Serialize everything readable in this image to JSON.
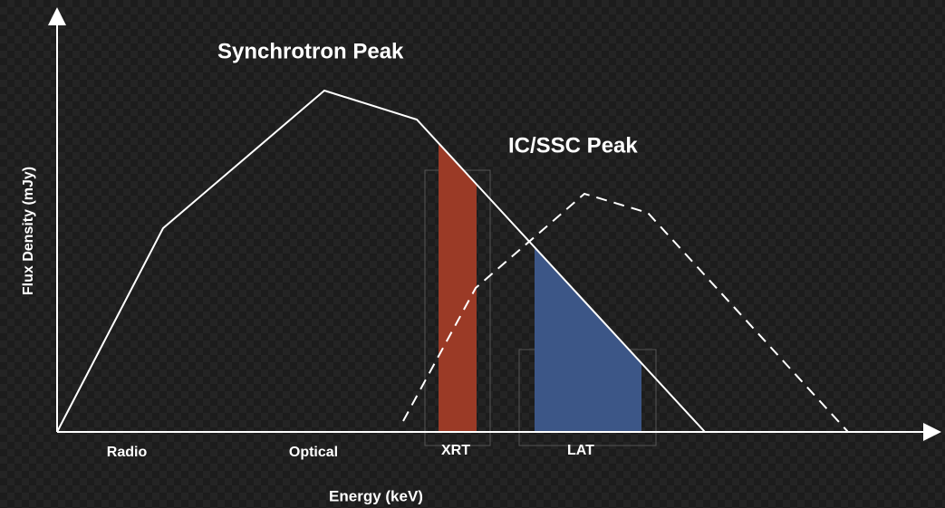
{
  "annotations": {
    "synchrotron_peak": "Synchrotron Peak",
    "ic_ssc_peak": "IC/SSC Peak"
  },
  "axes": {
    "y_label": "Flux Density (mJy)",
    "x_label": "Energy (keV)"
  },
  "bands": [
    "Radio",
    "Optical",
    "XRT",
    "LAT"
  ]
}
